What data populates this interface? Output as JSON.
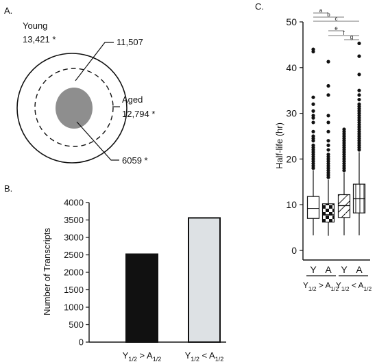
{
  "chart_data": [
    {
      "type": "other",
      "panel_label": "A.",
      "labels": {
        "young": "Young",
        "young_value": "13,421 *",
        "overlap_young": "11,507",
        "aged": "Aged",
        "aged_value": "12,794 *",
        "overlap_core": "6059 *"
      }
    },
    {
      "type": "bar",
      "panel_label": "B.",
      "ylabel": "Number of Transcripts",
      "ylim": [
        0,
        4000
      ],
      "yticks": [
        0,
        500,
        1000,
        1500,
        2000,
        2500,
        3000,
        3500,
        4000
      ],
      "categories": [
        {
          "main": "Y",
          "sub1": "1/2",
          "op": " > A",
          "sub2": "1/2"
        },
        {
          "main": "Y",
          "sub1": "1/2",
          "op": " < A",
          "sub2": "1/2"
        }
      ],
      "values": [
        2520,
        3560
      ],
      "colors": [
        "#111111",
        "#dde1e4"
      ]
    },
    {
      "type": "box",
      "panel_label": "C.",
      "ylabel": "Half-life (hr)",
      "ylim": [
        0,
        50
      ],
      "yticks": [
        0,
        10,
        20,
        30,
        40,
        50
      ],
      "boxes": [
        {
          "label": "Y",
          "q1": 7,
          "median": 9.2,
          "q3": 11.8,
          "whisker_low": 3.3,
          "whisker_high": 17.5,
          "pattern": "none",
          "outliers": [
            18,
            18.5,
            19,
            19.5,
            20,
            20.5,
            21,
            21.5,
            22,
            22.5,
            23,
            24,
            24.5,
            25,
            26,
            28,
            29,
            29.5,
            30.5,
            32,
            33.5,
            43.5,
            44
          ]
        },
        {
          "label": "A",
          "q1": 6.2,
          "median": 7.8,
          "q3": 10.2,
          "whisker_low": 3.2,
          "whisker_high": 15.5,
          "pattern": "checker",
          "outliers": [
            16,
            16.5,
            17,
            17.5,
            18,
            18.5,
            19,
            19.5,
            20,
            20.5,
            21,
            22,
            23,
            24,
            26,
            28,
            29.5,
            34,
            36,
            41.3
          ]
        },
        {
          "label": "Y",
          "q1": 7.2,
          "median": 9.8,
          "q3": 12.2,
          "whisker_low": 3.3,
          "whisker_high": 17,
          "pattern": "diagonal",
          "outliers": [
            17.5,
            18,
            18.5,
            19,
            19.5,
            20,
            20.5,
            21,
            21.5,
            22,
            22.5,
            23,
            23.5,
            24,
            24.5,
            25,
            25.5,
            26,
            26.5
          ]
        },
        {
          "label": "A",
          "q1": 8.2,
          "median": 11.3,
          "q3": 14.5,
          "whisker_low": 3.3,
          "whisker_high": 21.5,
          "pattern": "vertical",
          "outliers": [
            22,
            22.5,
            23,
            23.5,
            24,
            24.5,
            25,
            25.5,
            26,
            26.5,
            27,
            27.5,
            28,
            28.5,
            29,
            29.5,
            30,
            30.5,
            31,
            31.5,
            32,
            33,
            34,
            35,
            38.5,
            42.5,
            45.3
          ]
        }
      ],
      "group_labels": [
        {
          "main": "Y",
          "sub1": "1/2",
          "op": " > A",
          "sub2": "1/2"
        },
        {
          "main": "Y",
          "sub1": "1/2",
          "op": " < A",
          "sub2": "1/2"
        }
      ],
      "significance_letters": [
        "a",
        "b",
        "c",
        "e",
        "f",
        "g"
      ]
    }
  ]
}
